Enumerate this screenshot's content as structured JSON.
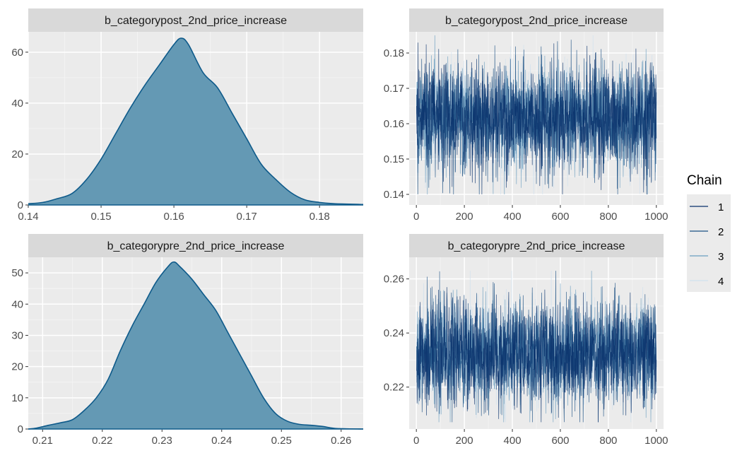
{
  "chart_data": [
    {
      "type": "area",
      "title": "b_categorypost_2nd_price_increase",
      "xlabel": "",
      "ylabel": "",
      "xlim": [
        0.14,
        0.186
      ],
      "ylim": [
        0,
        68
      ],
      "xticks": [
        0.14,
        0.15,
        0.16,
        0.17,
        0.18
      ],
      "xtick_labels": [
        "0.14",
        "0.15",
        "0.16",
        "0.17",
        "0.18"
      ],
      "yticks": [
        0,
        20,
        40,
        60
      ],
      "ytick_labels": [
        "0",
        "20",
        "40",
        "60"
      ],
      "x": [
        0.14,
        0.142,
        0.144,
        0.146,
        0.148,
        0.15,
        0.152,
        0.154,
        0.156,
        0.158,
        0.16,
        0.161,
        0.162,
        0.164,
        0.166,
        0.168,
        0.17,
        0.172,
        0.174,
        0.176,
        0.178,
        0.18,
        0.182,
        0.186
      ],
      "values": [
        0.5,
        1,
        2.5,
        4.5,
        10,
        18,
        28,
        38,
        47,
        55,
        63,
        65.5,
        63,
        52,
        46,
        36,
        26,
        16,
        10,
        5,
        2,
        1,
        0.5,
        0.2
      ],
      "fill": "#6499B4",
      "line_color": "#0E5A8A",
      "grid": true
    },
    {
      "type": "line",
      "title": "b_categorypost_2nd_price_increase",
      "xlabel": "",
      "ylabel": "",
      "xlim": [
        -30,
        1030
      ],
      "ylim": [
        0.137,
        0.186
      ],
      "xticks": [
        0,
        200,
        400,
        600,
        800,
        1000
      ],
      "xtick_labels": [
        "0",
        "200",
        "400",
        "600",
        "800",
        "1000"
      ],
      "yticks": [
        0.14,
        0.15,
        0.16,
        0.17,
        0.18
      ],
      "ytick_labels": [
        "0.14",
        "0.15",
        "0.16",
        "0.17",
        "0.18"
      ],
      "iterations": [
        1,
        1000
      ],
      "center": 0.1615,
      "spread": 0.0075,
      "min": 0.14,
      "max": 0.185,
      "series": [
        {
          "name": "1",
          "color": "#08306B"
        },
        {
          "name": "2",
          "color": "#1A4F82"
        },
        {
          "name": "3",
          "color": "#6A9EC0"
        },
        {
          "name": "4",
          "color": "#D0E1EE"
        }
      ],
      "grid": true
    },
    {
      "type": "area",
      "title": "b_categorypre_2nd_price_increase",
      "xlabel": "",
      "ylabel": "",
      "xlim": [
        0.2076,
        0.2637
      ],
      "ylim": [
        0,
        55
      ],
      "xticks": [
        0.21,
        0.22,
        0.23,
        0.24,
        0.25,
        0.26
      ],
      "xtick_labels": [
        "0.21",
        "0.22",
        "0.23",
        "0.24",
        "0.25",
        "0.26"
      ],
      "yticks": [
        0,
        10,
        20,
        30,
        40,
        50
      ],
      "ytick_labels": [
        "0",
        "10",
        "20",
        "30",
        "40",
        "50"
      ],
      "x": [
        0.2076,
        0.209,
        0.211,
        0.213,
        0.215,
        0.217,
        0.219,
        0.221,
        0.223,
        0.225,
        0.227,
        0.229,
        0.231,
        0.232,
        0.233,
        0.235,
        0.237,
        0.239,
        0.241,
        0.243,
        0.245,
        0.247,
        0.249,
        0.251,
        0.253,
        0.255,
        0.257,
        0.259,
        0.2637
      ],
      "values": [
        0,
        0.3,
        1.2,
        2,
        3,
        6,
        10,
        16,
        25,
        33,
        40,
        47,
        52,
        53.5,
        52,
        48,
        43,
        38,
        31,
        24,
        17,
        10,
        5,
        2.5,
        1.5,
        1.2,
        0.8,
        0.2,
        0
      ],
      "fill": "#6499B4",
      "line_color": "#0E5A8A",
      "grid": true
    },
    {
      "type": "line",
      "title": "b_categorypre_2nd_price_increase",
      "xlabel": "",
      "ylabel": "",
      "xlim": [
        -30,
        1030
      ],
      "ylim": [
        0.2045,
        0.268
      ],
      "xticks": [
        0,
        200,
        400,
        600,
        800,
        1000
      ],
      "xtick_labels": [
        "0",
        "200",
        "400",
        "600",
        "800",
        "1000"
      ],
      "yticks": [
        0.22,
        0.24,
        0.26
      ],
      "ytick_labels": [
        "0.22",
        "0.24",
        "0.26"
      ],
      "iterations": [
        1,
        1000
      ],
      "center": 0.2325,
      "spread": 0.0095,
      "min": 0.207,
      "max": 0.263,
      "series": [
        {
          "name": "1",
          "color": "#08306B"
        },
        {
          "name": "2",
          "color": "#1A4F82"
        },
        {
          "name": "3",
          "color": "#6A9EC0"
        },
        {
          "name": "4",
          "color": "#D0E1EE"
        }
      ],
      "grid": true
    }
  ],
  "legend": {
    "title": "Chain",
    "position": "right",
    "items": [
      {
        "label": "1",
        "color": "#08306B"
      },
      {
        "label": "2",
        "color": "#1A4F82"
      },
      {
        "label": "3",
        "color": "#6A9EC0"
      },
      {
        "label": "4",
        "color": "#D0E1EE"
      }
    ]
  },
  "colors": {
    "panel_background": "#EBEBEB",
    "strip_background": "#D9D9D9",
    "grid_major": "#FFFFFF",
    "legend_background": "#EBEBEB"
  }
}
